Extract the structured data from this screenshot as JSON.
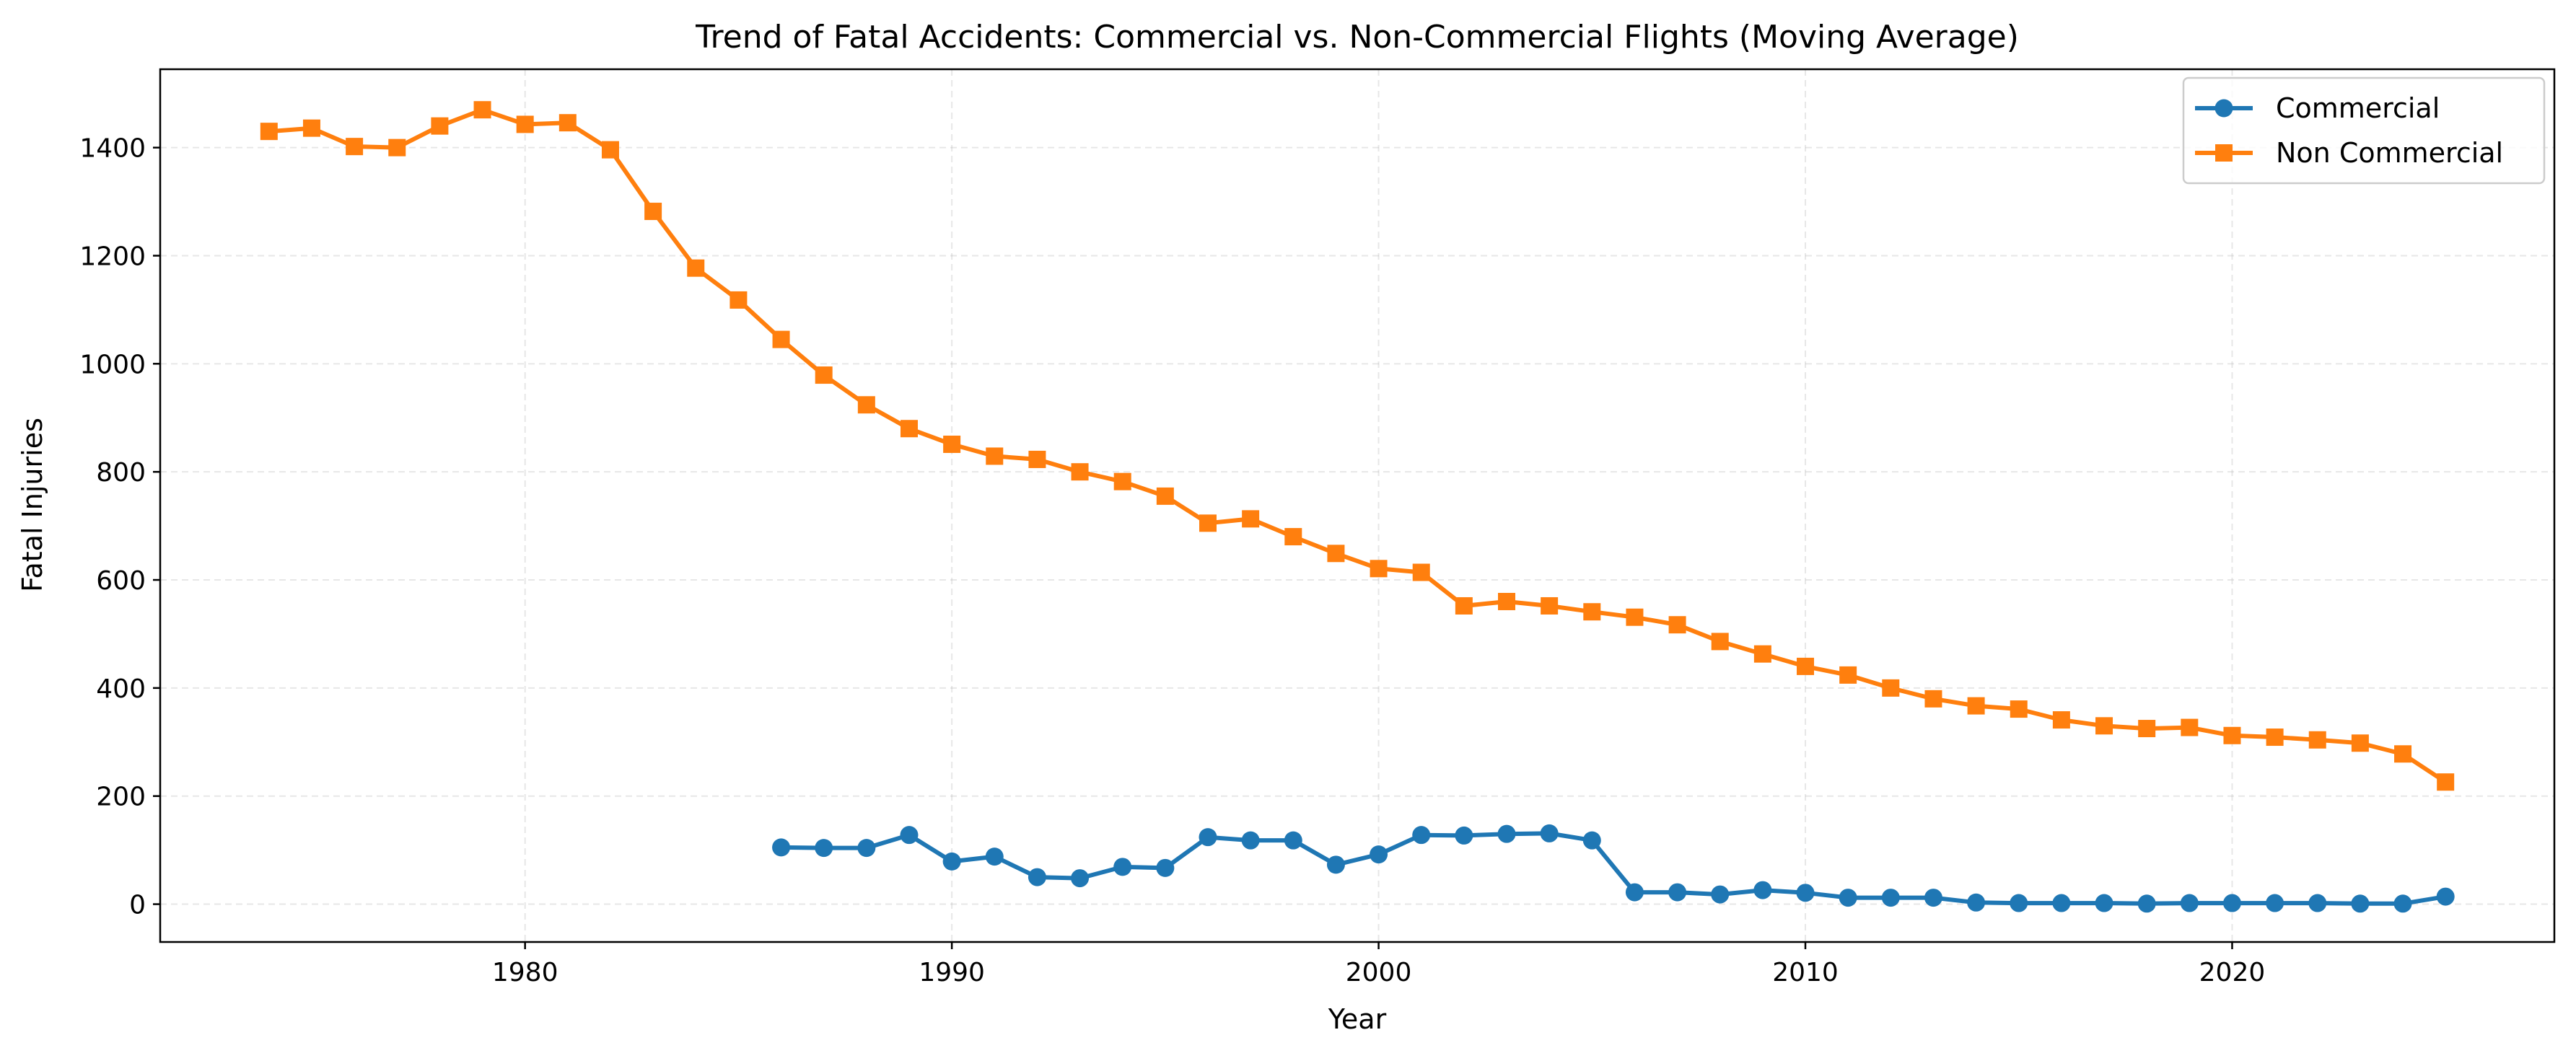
{
  "chart_data": {
    "type": "line",
    "title": "Trend of Fatal Accidents: Commercial vs. Non-Commercial Flights (Moving Average)",
    "xlabel": "Year",
    "ylabel": "Fatal Injuries",
    "xlim": [
      1971.45,
      1977.0
    ],
    "ylim": [
      -70,
      1545
    ],
    "x_ticks": [
      1980,
      1990,
      2000,
      2010,
      2020
    ],
    "y_ticks": [
      0,
      200,
      400,
      600,
      800,
      1000,
      1200,
      1400
    ],
    "grid": true,
    "legend_position": "top-right",
    "series": [
      {
        "name": "Commercial",
        "color": "#1f77b4",
        "marker": "circle",
        "x": [
          1986,
          1987,
          1988,
          1989,
          1990,
          1991,
          1992,
          1993,
          1994,
          1995,
          1996,
          1997,
          1998,
          1999,
          2000,
          2001,
          2002,
          2003,
          2004,
          2005,
          2006,
          2007,
          2008,
          2009,
          2010,
          2011,
          2012,
          2013,
          2014,
          2015,
          2016,
          2017,
          2018,
          2019,
          2020,
          2021,
          2022,
          2023,
          2024,
          2025
        ],
        "values": [
          105,
          104,
          104,
          128,
          79,
          88,
          50,
          48,
          69,
          67,
          124,
          118,
          118,
          73,
          92,
          128,
          127,
          130,
          131,
          118,
          22,
          22,
          18,
          26,
          21,
          12,
          12,
          12,
          3,
          2,
          2,
          2,
          1,
          2,
          2,
          2,
          2,
          1,
          1,
          14
        ]
      },
      {
        "name": "Non Commercial",
        "color": "#ff7f0e",
        "marker": "square",
        "x": [
          1974,
          1975,
          1976,
          1977,
          1978,
          1979,
          1980,
          1981,
          1982,
          1983,
          1984,
          1985,
          1986,
          1987,
          1988,
          1989,
          1990,
          1991,
          1992,
          1993,
          1994,
          1995,
          1996,
          1997,
          1998,
          1999,
          2000,
          2001,
          2002,
          2003,
          2004,
          2005,
          2006,
          2007,
          2008,
          2009,
          2010,
          2011,
          2012,
          2013,
          2014,
          2015,
          2016,
          2017,
          2018,
          2019,
          2020,
          2021,
          2022,
          2023,
          2024,
          2025
        ],
        "values": [
          1430,
          1436,
          1402,
          1400,
          1440,
          1470,
          1443,
          1446,
          1396,
          1282,
          1177,
          1118,
          1045,
          979,
          924,
          880,
          851,
          829,
          823,
          800,
          782,
          755,
          705,
          713,
          680,
          649,
          621,
          614,
          552,
          560,
          552,
          541,
          531,
          517,
          486,
          463,
          440,
          424,
          400,
          380,
          367,
          361,
          341,
          330,
          325,
          327,
          312,
          309,
          304,
          298,
          278,
          226
        ]
      }
    ]
  }
}
